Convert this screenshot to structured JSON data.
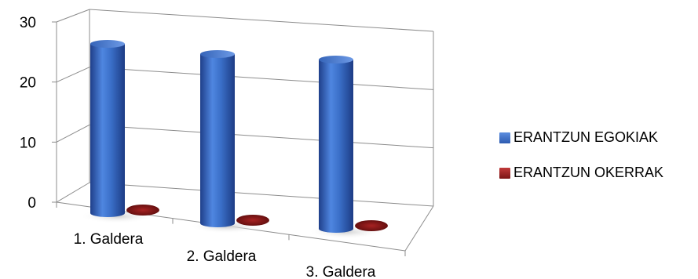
{
  "chart_data": {
    "type": "bar",
    "style": "3d-cylinder",
    "categories": [
      "1. Galdera",
      "2. Galdera",
      "3. Galdera"
    ],
    "series": [
      {
        "name": "ERANTZUN EGOKIAK",
        "values": [
          27,
          27,
          27
        ],
        "color": "#3a6fc8"
      },
      {
        "name": "ERANTZUN OKERRAK",
        "values": [
          0,
          0,
          0
        ],
        "color": "#8b1c1c"
      }
    ],
    "ylim": [
      0,
      30
    ],
    "yticks": [
      "0",
      "10",
      "20",
      "30"
    ],
    "grid": true,
    "legend": "right",
    "title": "",
    "xlabel": "",
    "ylabel": ""
  }
}
